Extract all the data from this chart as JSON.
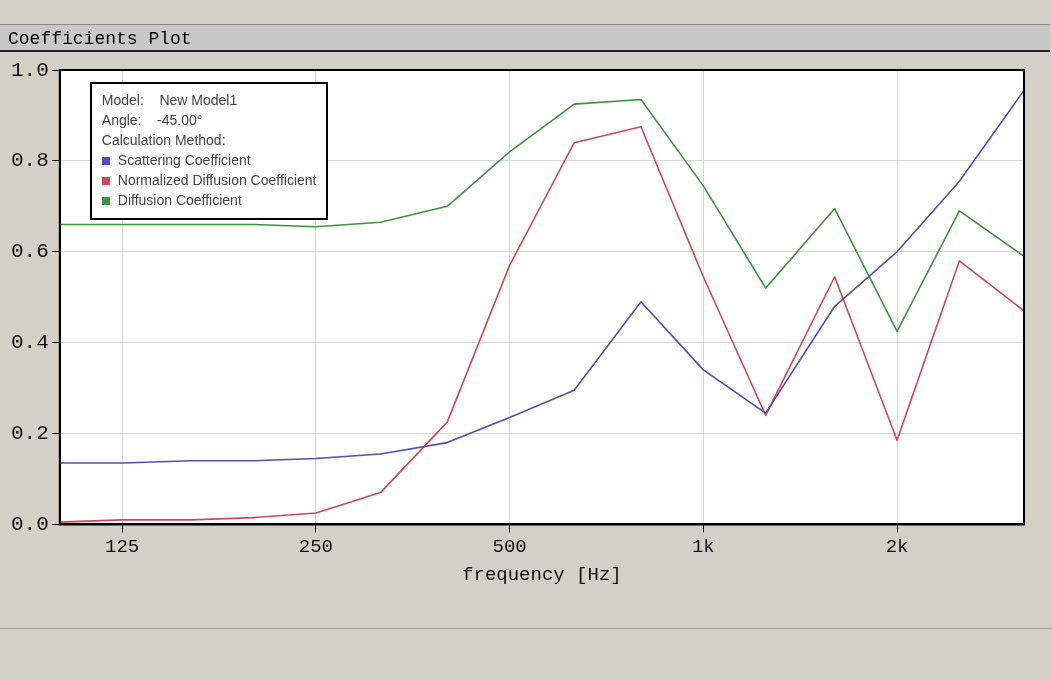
{
  "chart_data": {
    "type": "line",
    "title": "Coefficients Plot",
    "xlabel": "frequency [Hz]",
    "x": [
      100,
      125,
      160,
      200,
      250,
      315,
      400,
      500,
      630,
      800,
      1000,
      1250,
      1600,
      2000,
      2500,
      3150
    ],
    "series": [
      {
        "name": "Scattering Coefficient",
        "color": "#5050b8",
        "values": [
          0.135,
          0.135,
          0.14,
          0.14,
          0.145,
          0.155,
          0.18,
          0.235,
          0.295,
          0.49,
          0.34,
          0.245,
          0.48,
          0.6,
          0.755,
          0.955
        ]
      },
      {
        "name": "Normalized Diffusion Coefficient",
        "color": "#d04858",
        "values": [
          0.005,
          0.01,
          0.01,
          0.015,
          0.025,
          0.07,
          0.225,
          0.57,
          0.84,
          0.875,
          0.545,
          0.24,
          0.545,
          0.185,
          0.58,
          0.47
        ]
      },
      {
        "name": "Diffusion Coefficient",
        "color": "#3c9440",
        "values": [
          0.66,
          0.66,
          0.66,
          0.66,
          0.655,
          0.665,
          0.7,
          0.82,
          0.925,
          0.935,
          0.745,
          0.52,
          0.695,
          0.425,
          0.69,
          0.59
        ]
      }
    ],
    "log": "x",
    "xlim": [
      100,
      3150
    ],
    "xticks": [
      125,
      250,
      500,
      {
        "value": 1000,
        "label": "1k"
      },
      {
        "value": 2000,
        "label": "2k"
      }
    ],
    "ylim": [
      0,
      1
    ],
    "yticks": [
      {
        "value": 0,
        "label": "0.0"
      },
      {
        "value": 0.2,
        "label": "0.2"
      },
      {
        "value": 0.4,
        "label": "0.4"
      },
      {
        "value": 0.6,
        "label": "0.6"
      },
      {
        "value": 0.8,
        "label": "0.8"
      },
      {
        "value": 1,
        "label": "1.0"
      }
    ],
    "grid": true,
    "legend": "top left",
    "marker": "none",
    "line_style": "solid",
    "annotations": [
      "Model:    New Model1",
      "Angle:    -45.00°",
      "Calculation Method:"
    ]
  }
}
